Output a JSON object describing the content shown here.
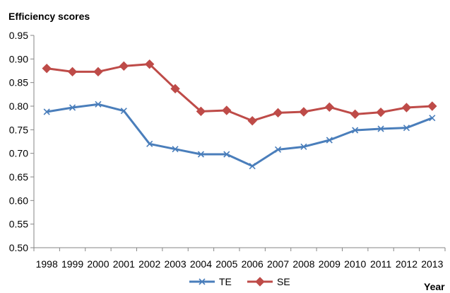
{
  "chart_data": {
    "type": "line",
    "ylabel": "Efficiency scores",
    "xlabel": "Year",
    "ylim": [
      0.5,
      0.95
    ],
    "yticks": [
      "0.50",
      "0.55",
      "0.60",
      "0.65",
      "0.70",
      "0.75",
      "0.80",
      "0.85",
      "0.90",
      "0.95"
    ],
    "categories": [
      "1998",
      "1999",
      "2000",
      "2001",
      "2002",
      "2003",
      "2004",
      "2005",
      "2006",
      "2007",
      "2008",
      "2009",
      "2010",
      "2011",
      "2012",
      "2013"
    ],
    "grid": false,
    "legend_position": "bottom",
    "series": [
      {
        "name": "TE",
        "color": "#4a7ebb",
        "marker": "x",
        "values": [
          0.788,
          0.797,
          0.804,
          0.79,
          0.72,
          0.709,
          0.698,
          0.698,
          0.673,
          0.708,
          0.714,
          0.728,
          0.749,
          0.752,
          0.754,
          0.775
        ]
      },
      {
        "name": "SE",
        "color": "#be4b48",
        "marker": "diamond",
        "values": [
          0.88,
          0.873,
          0.873,
          0.885,
          0.889,
          0.837,
          0.789,
          0.791,
          0.769,
          0.786,
          0.788,
          0.798,
          0.783,
          0.787,
          0.797,
          0.8
        ]
      }
    ]
  }
}
